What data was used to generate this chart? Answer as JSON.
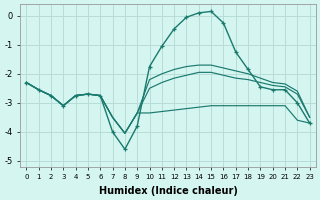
{
  "xlabel": "Humidex (Indice chaleur)",
  "background_color": "#d4f5f0",
  "grid_color": "#b8ddd8",
  "line_color": "#1a7a6e",
  "x": [
    0,
    1,
    2,
    3,
    4,
    5,
    6,
    7,
    8,
    9,
    10,
    11,
    12,
    13,
    14,
    15,
    16,
    17,
    18,
    19,
    20,
    21,
    22,
    23
  ],
  "line_peaked": [
    -2.3,
    -2.55,
    -2.75,
    -3.1,
    -2.75,
    -2.7,
    -2.75,
    -4.0,
    -4.6,
    -3.8,
    -1.75,
    -1.05,
    -0.45,
    -0.05,
    0.1,
    0.15,
    -0.25,
    -1.25,
    -1.85,
    -2.45,
    -2.55,
    -2.55,
    -3.0,
    -3.7
  ],
  "line_flat_low": [
    -2.3,
    -2.55,
    -2.75,
    -3.1,
    -2.75,
    -2.7,
    -2.75,
    -3.5,
    -4.05,
    -3.35,
    -3.35,
    -3.3,
    -3.25,
    -3.2,
    -3.15,
    -3.1,
    -3.1,
    -3.1,
    -3.1,
    -3.1,
    -3.1,
    -3.1,
    -3.6,
    -3.7
  ],
  "line_mid1": [
    -2.3,
    -2.55,
    -2.75,
    -3.1,
    -2.75,
    -2.7,
    -2.75,
    -3.5,
    -4.05,
    -3.35,
    -2.5,
    -2.3,
    -2.15,
    -2.05,
    -1.95,
    -1.95,
    -2.05,
    -2.15,
    -2.2,
    -2.3,
    -2.4,
    -2.45,
    -2.7,
    -3.5
  ],
  "line_mid2": [
    -2.3,
    -2.55,
    -2.75,
    -3.1,
    -2.75,
    -2.7,
    -2.75,
    -3.5,
    -4.05,
    -3.35,
    -2.2,
    -2.0,
    -1.85,
    -1.75,
    -1.7,
    -1.7,
    -1.8,
    -1.9,
    -2.0,
    -2.15,
    -2.3,
    -2.35,
    -2.6,
    -3.5
  ],
  "ylim": [
    -5.2,
    0.4
  ],
  "xlim": [
    -0.5,
    23.5
  ],
  "yticks": [
    0,
    -1,
    -2,
    -3,
    -4,
    -5
  ]
}
